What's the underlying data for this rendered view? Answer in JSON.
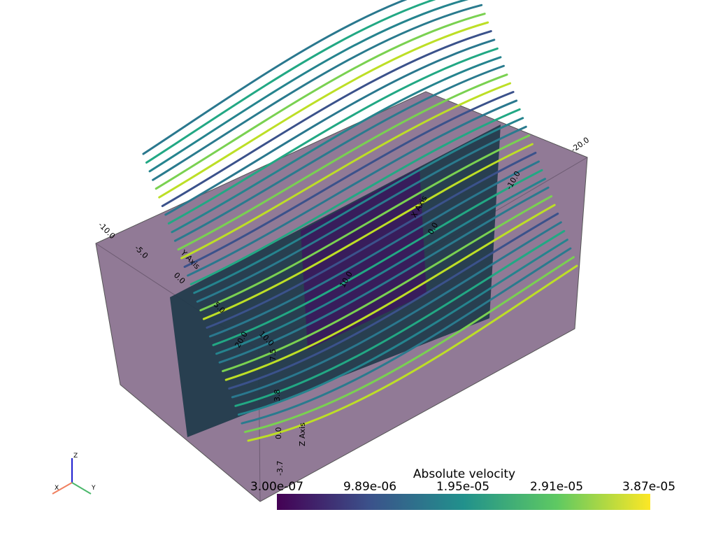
{
  "axes": {
    "x": {
      "title": "X Axis",
      "tick_labels": [
        "20.0",
        "10.0",
        "0.0",
        "-10.0",
        "-20.0"
      ]
    },
    "y": {
      "title": "Y Axis",
      "tick_labels": [
        "-10.0",
        "-5.0",
        "0.0",
        "5.0",
        "10.0"
      ]
    },
    "z": {
      "title": "Z Axis",
      "tick_labels": [
        "7.5",
        "3.8",
        "0.0",
        "-3.7"
      ]
    }
  },
  "colorbar": {
    "title": "Absolute velocity",
    "tick_labels": [
      "3.00e-07",
      "9.89e-06",
      "1.95e-05",
      "2.91e-05",
      "3.87e-05"
    ]
  },
  "orientation": {
    "x": "X",
    "y": "Y",
    "z": "Z"
  }
}
